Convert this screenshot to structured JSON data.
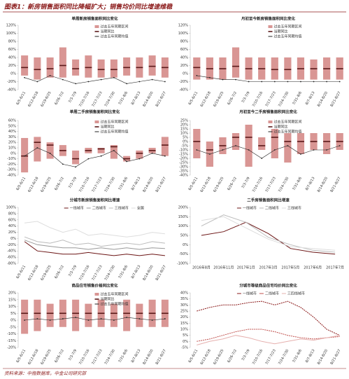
{
  "header": "图表1：新房销售面积同比降幅扩大；销售均价同比增速维稳",
  "footer": "资料来源：中指数据库，中金公司研究部",
  "chart_data": [
    {
      "type": "range",
      "title": "单周新房销售面积同比变化",
      "categories": [
        "6/5-6/11",
        "6/12-6/18",
        "6/19-6/25",
        "6/26-7/2",
        "7/3-7/9",
        "7/10-7/16",
        "7/17-7/23",
        "7/24-7/30",
        "7/31-8/6",
        "8/7-8/13",
        "8/14-8/20",
        "8/21-8/27"
      ],
      "series": [
        {
          "name": "过去五年同期区间",
          "color": "#d99694",
          "low": [
            -5,
            -15,
            -10,
            -10,
            -5,
            -10,
            -10,
            -10,
            -5,
            -10,
            -5,
            -10
          ],
          "high": [
            45,
            40,
            40,
            65,
            35,
            45,
            35,
            35,
            40,
            40,
            45,
            40
          ]
        },
        {
          "name": "当期同比",
          "color": "#5b1a1a",
          "values": [
            15,
            10,
            12,
            20,
            12,
            15,
            10,
            10,
            15,
            15,
            18,
            15
          ]
        },
        {
          "name": "过去五年同期均值",
          "color": "#222222",
          "values": [
            -10,
            -20,
            -5,
            -15,
            -25,
            -20,
            -15,
            -10,
            -25,
            -20,
            -15,
            -20
          ]
        }
      ],
      "ylim": [
        -40,
        120
      ],
      "yticks": [
        {
          "value": -40,
          "label": "-40%"
        },
        {
          "value": -20,
          "label": "-20%"
        },
        {
          "value": 0,
          "label": "0%"
        },
        {
          "value": 20,
          "label": "20%"
        },
        {
          "value": 40,
          "label": "40%"
        },
        {
          "value": 60,
          "label": "60%"
        },
        {
          "value": 80,
          "label": "80%"
        },
        {
          "value": 100,
          "label": "100%"
        },
        {
          "value": 120,
          "label": "120%"
        }
      ]
    },
    {
      "type": "range",
      "title": "月初至今新房销售面积同比变化",
      "categories": [
        "6/5-6/11",
        "6/12-6/18",
        "6/19-6/25",
        "6/26-7/2",
        "7/3-7/9",
        "7/10-7/16",
        "7/17-7/23",
        "7/24-7/30",
        "7/31-8/6",
        "8/7-8/13",
        "8/14-8/20",
        "8/21-8/27"
      ],
      "series": [
        {
          "name": "过去五年同期区间",
          "color": "#d99694",
          "low": [
            -15,
            -15,
            -15,
            -10,
            -15,
            -15,
            -15,
            -15,
            -15,
            -15,
            -15,
            -15
          ],
          "high": [
            40,
            40,
            40,
            65,
            40,
            40,
            40,
            40,
            40,
            35,
            40,
            40
          ]
        },
        {
          "name": "当期同比",
          "color": "#5b1a1a",
          "values": [
            15,
            12,
            12,
            18,
            12,
            12,
            10,
            10,
            12,
            12,
            12,
            12
          ]
        },
        {
          "name": "过去五年同期均值",
          "color": "#222222",
          "values": [
            -5,
            -10,
            -15,
            -15,
            -20,
            -20,
            -20,
            -20,
            -20,
            -20,
            -20,
            -20
          ]
        }
      ],
      "ylim": [
        -40,
        120
      ],
      "yticks": [
        {
          "value": -40,
          "label": "-40%"
        },
        {
          "value": -20,
          "label": "-20%"
        },
        {
          "value": 0,
          "label": "0%"
        },
        {
          "value": 20,
          "label": "20%"
        },
        {
          "value": 40,
          "label": "40%"
        },
        {
          "value": 60,
          "label": "60%"
        },
        {
          "value": 80,
          "label": "80%"
        },
        {
          "value": 100,
          "label": "100%"
        },
        {
          "value": 120,
          "label": "120%"
        }
      ]
    },
    {
      "type": "range",
      "title": "单周二手房销售面积同比变化",
      "categories": [
        "6/5-6/11",
        "6/12-6/18",
        "6/19-6/25",
        "6/26-7/2",
        "7/3-7/9",
        "7/10-7/16",
        "7/17-7/23",
        "7/24-7/30",
        "7/31-8/6",
        "8/7-8/13",
        "8/14-8/20",
        "8/21-8/27"
      ],
      "series": [
        {
          "name": "过去五年同期区间",
          "color": "#d99694",
          "low": [
            -35,
            -15,
            -10,
            -5,
            -20,
            0,
            0,
            -10,
            -15,
            -10,
            0,
            -5
          ],
          "high": [
            28,
            30,
            20,
            15,
            5,
            10,
            10,
            15,
            -5,
            5,
            10,
            30
          ]
        },
        {
          "name": "当期同比",
          "color": "#5b1a1a",
          "values": [
            -5,
            20,
            15,
            5,
            -10,
            5,
            8,
            12,
            -10,
            0,
            5,
            15
          ]
        },
        {
          "name": "过去五年同期均值",
          "color": "#222222",
          "values": [
            -5,
            10,
            0,
            -20,
            -25,
            -10,
            -5,
            5,
            -15,
            -10,
            0,
            -5
          ]
        }
      ],
      "ylim": [
        -40,
        60
      ],
      "yticks": [
        {
          "value": -40,
          "label": "-40%"
        },
        {
          "value": -30,
          "label": "-30%"
        },
        {
          "value": -20,
          "label": "-20%"
        },
        {
          "value": -10,
          "label": "-10%"
        },
        {
          "value": 0,
          "label": "0%"
        },
        {
          "value": 10,
          "label": "10%"
        },
        {
          "value": 20,
          "label": "20%"
        },
        {
          "value": 30,
          "label": "30%"
        },
        {
          "value": 40,
          "label": "40%"
        },
        {
          "value": 50,
          "label": "50%"
        },
        {
          "value": 60,
          "label": "60%"
        }
      ]
    },
    {
      "type": "range",
      "title": "月初至今二手房销售面积同比变化",
      "categories": [
        "6/5-6/11",
        "6/12-6/18",
        "6/19-6/25",
        "6/26-7/2",
        "7/3-7/9",
        "7/10-7/16",
        "7/17-7/23",
        "7/24-7/30",
        "7/31-8/6",
        "8/7-8/13",
        "8/14-8/20",
        "8/21-8/27"
      ],
      "series": [
        {
          "name": "过去五年同期区间",
          "color": "#d99694",
          "low": [
            -20,
            -30,
            -15,
            -10,
            -30,
            -10,
            -20,
            -25,
            -15,
            -10,
            -15,
            -10
          ],
          "high": [
            15,
            0,
            5,
            10,
            20,
            5,
            15,
            10,
            10,
            10,
            10,
            10
          ]
        },
        {
          "name": "当期同比",
          "color": "#5b1a1a",
          "values": [
            0,
            -10,
            -5,
            5,
            5,
            -5,
            5,
            0,
            0,
            0,
            0,
            0
          ]
        },
        {
          "name": "过去五年同期均值",
          "color": "#222222",
          "values": [
            -10,
            -15,
            -10,
            -5,
            -10,
            -20,
            -10,
            -5,
            -15,
            -10,
            -10,
            -5
          ]
        }
      ],
      "ylim": [
        -40,
        25
      ],
      "yticks": [
        {
          "value": -40,
          "label": "-40%"
        },
        {
          "value": -35,
          "label": "-35%"
        },
        {
          "value": -30,
          "label": "-30%"
        },
        {
          "value": -25,
          "label": "-25%"
        },
        {
          "value": -20,
          "label": "-20%"
        },
        {
          "value": -15,
          "label": "-15%"
        },
        {
          "value": -10,
          "label": "-10%"
        },
        {
          "value": -5,
          "label": "-5%"
        },
        {
          "value": 0,
          "label": "0%"
        },
        {
          "value": 5,
          "label": "5%"
        },
        {
          "value": 10,
          "label": "10%"
        },
        {
          "value": 15,
          "label": "15%"
        },
        {
          "value": 20,
          "label": "20%"
        },
        {
          "value": 25,
          "label": "25%"
        }
      ]
    },
    {
      "type": "line",
      "title": "分城市新房销售面积同比增速",
      "categories": [
        "6/5-6/11",
        "6/12-6/18",
        "6/19-6/25",
        "6/26-7/2",
        "7/3-7/9",
        "7/10-7/16",
        "7/17-7/23",
        "7/24-7/30",
        "7/31-8/6",
        "8/7-8/13",
        "8/14-8/20",
        "8/21-8/27"
      ],
      "series": [
        {
          "name": "一线城市",
          "color": "#6b1414",
          "values": [
            -10,
            -40,
            -45,
            -50,
            -50,
            -45,
            -50,
            -55,
            -50,
            -55,
            -50,
            -55
          ]
        },
        {
          "name": "二线城市",
          "color": "#999999",
          "values": [
            -5,
            -20,
            -25,
            -30,
            -30,
            -35,
            -30,
            -35,
            -30,
            -35,
            -30,
            -32
          ]
        },
        {
          "name": "三线城市",
          "color": "#bbbbbb",
          "values": [
            5,
            -10,
            -15,
            -5,
            -20,
            -15,
            -25,
            -20,
            -15,
            -20,
            -10,
            -15
          ]
        },
        {
          "name": "全国",
          "color": "#dddddd",
          "values": [
            50,
            55,
            35,
            20,
            30,
            10,
            15,
            10,
            5,
            10,
            20,
            15
          ]
        }
      ],
      "ylim": [
        -80,
        100
      ],
      "yticks": [
        {
          "value": -80,
          "label": "-80%"
        },
        {
          "value": -60,
          "label": "-60%"
        },
        {
          "value": -40,
          "label": "-40%"
        },
        {
          "value": -20,
          "label": "-20%"
        },
        {
          "value": 0,
          "label": "0%"
        },
        {
          "value": 20,
          "label": "20%"
        },
        {
          "value": 40,
          "label": "40%"
        },
        {
          "value": 60,
          "label": "60%"
        },
        {
          "value": 80,
          "label": "80%"
        },
        {
          "value": 100,
          "label": "100%"
        }
      ]
    },
    {
      "type": "line",
      "title": "二手房销售面积同比增速",
      "categories": [
        "2016年8月",
        "2016年11月",
        "2017年1月",
        "2017年3月",
        "2017年5月",
        "2017年6月",
        "2017年7月"
      ],
      "series": [
        {
          "name": "一线城市",
          "color": "#6b1414",
          "values": [
            50,
            70,
            120,
            60,
            -20,
            -40,
            -50
          ]
        },
        {
          "name": "二线城市",
          "color": "#bbbbbb",
          "values": [
            100,
            160,
            120,
            40,
            0,
            -30,
            -40
          ]
        },
        {
          "name": "三线城市",
          "color": "#dddddd",
          "values": [
            130,
            150,
            90,
            30,
            -10,
            -20,
            -30
          ]
        }
      ],
      "ylim": [
        -100,
        200
      ],
      "yticks": [
        {
          "value": -100,
          "label": "-100%"
        },
        {
          "value": -50,
          "label": "-50%"
        },
        {
          "value": 0,
          "label": "0%"
        },
        {
          "value": 50,
          "label": "50%"
        },
        {
          "value": 100,
          "label": "100%"
        },
        {
          "value": 150,
          "label": "150%"
        },
        {
          "value": 200,
          "label": "200%"
        }
      ]
    },
    {
      "type": "range",
      "title": "商品住宅销售价格同比变化",
      "categories": [
        "6/5-6/11",
        "6/12-6/18",
        "6/19-6/25",
        "6/26-7/2",
        "7/3-7/9",
        "7/10-7/16",
        "7/17-7/23",
        "7/24-7/30",
        "7/31-8/6",
        "8/7-8/13",
        "8/14-8/20",
        "8/21-8/27"
      ],
      "series": [
        {
          "name": "过去五年同期区间",
          "color": "#d99694",
          "low": [
            -10,
            -8,
            -5,
            -5,
            -8,
            -5,
            -5,
            -5,
            -8,
            -5,
            -5,
            -5
          ],
          "high": [
            15,
            15,
            12,
            15,
            15,
            12,
            15,
            12,
            15,
            12,
            15,
            15
          ]
        },
        {
          "name": "当期同比",
          "color": "#5b1a1a",
          "values": [
            5,
            5,
            5,
            5,
            5,
            5,
            5,
            5,
            5,
            5,
            5,
            5
          ]
        },
        {
          "name": "过去五年同期均值",
          "color": "#222222",
          "values": [
            0,
            1,
            0,
            1,
            2,
            0,
            1,
            0,
            2,
            1,
            0,
            1
          ]
        }
      ],
      "ylim": [
        -20,
        20
      ],
      "yticks": [
        {
          "value": -20,
          "label": "-20%"
        },
        {
          "value": -15,
          "label": "-15%"
        },
        {
          "value": -10,
          "label": "-10%"
        },
        {
          "value": -5,
          "label": "-5%"
        },
        {
          "value": 0,
          "label": "0%"
        },
        {
          "value": 5,
          "label": "5%"
        },
        {
          "value": 10,
          "label": "10%"
        },
        {
          "value": 15,
          "label": "15%"
        },
        {
          "value": 20,
          "label": "20%"
        }
      ]
    },
    {
      "type": "line",
      "title": "分城市等级商品住宅均价同比变化",
      "categories": [
        "6/5-6/11",
        "6/12-6/18",
        "6/19-6/25",
        "6/26-7/2",
        "7/3-7/9",
        "7/10-7/16",
        "7/17-7/23",
        "7/24-7/30",
        "7/31-8/6",
        "8/7-8/13",
        "8/14-8/20",
        "8/21-8/27"
      ],
      "series": [
        {
          "name": "一线城市",
          "color": "#8b1a1a",
          "values": [
            25,
            28,
            30,
            30,
            32,
            33,
            30,
            33,
            28,
            20,
            10,
            5
          ]
        },
        {
          "name": "二线城市",
          "color": "#c0504d",
          "values": [
            0,
            2,
            5,
            8,
            10,
            10,
            8,
            5,
            3,
            2,
            3,
            4
          ]
        },
        {
          "name": "三四线城市",
          "color": "#e6b0ae",
          "values": [
            -3,
            0,
            2,
            5,
            3,
            0,
            -2,
            0,
            2,
            1,
            3,
            5
          ]
        }
      ],
      "ylim": [
        -5,
        40
      ],
      "yticks": [
        {
          "value": -5,
          "label": "-5%"
        },
        {
          "value": 0,
          "label": "0%"
        },
        {
          "value": 5,
          "label": "5%"
        },
        {
          "value": 10,
          "label": "10%"
        },
        {
          "value": 15,
          "label": "15%"
        },
        {
          "value": 20,
          "label": "20%"
        },
        {
          "value": 25,
          "label": "25%"
        },
        {
          "value": 30,
          "label": "30%"
        },
        {
          "value": 35,
          "label": "35%"
        },
        {
          "value": 40,
          "label": "40%"
        }
      ]
    }
  ]
}
